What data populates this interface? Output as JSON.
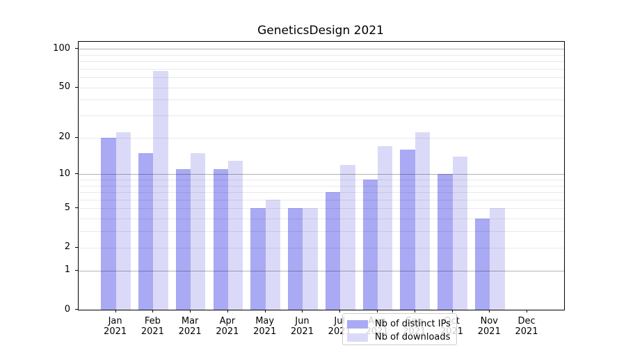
{
  "title": "GeneticsDesign 2021",
  "chart_data": {
    "type": "bar",
    "title": "GeneticsDesign 2021",
    "scale": "log10(value+1), linear in transformed space",
    "categories": [
      "Jan",
      "Feb",
      "Mar",
      "Apr",
      "May",
      "Jun",
      "Jul",
      "Aug",
      "Sep",
      "Oct",
      "Nov",
      "Dec"
    ],
    "year": "2021",
    "series": [
      {
        "name": "Nb of distinct IPs",
        "color": "#a9a9f4",
        "values": [
          20,
          15,
          11,
          11,
          5,
          5,
          7,
          9,
          16,
          10,
          4,
          0
        ]
      },
      {
        "name": "Nb of downloads",
        "color": "#dadaf8",
        "values": [
          22,
          67,
          15,
          13,
          6,
          5,
          12,
          17,
          22,
          14,
          5,
          0
        ]
      }
    ],
    "y_tick_labels": [
      "100",
      "50",
      "20",
      "10",
      "5",
      "2",
      "1",
      "0"
    ],
    "y_tick_values": [
      100,
      50,
      20,
      10,
      5,
      2,
      1,
      0
    ],
    "major_gridlines": [
      1,
      10,
      100
    ],
    "minor_gridlines": [
      2,
      3,
      4,
      5,
      6,
      7,
      8,
      9,
      20,
      30,
      40,
      50,
      60,
      70,
      80,
      90
    ],
    "ylim": [
      0,
      113
    ],
    "grid": "on",
    "legend_position": "bottom-center-inside"
  },
  "colors": {
    "distinct_ips": "#a9a9f4",
    "downloads": "#dadaf8",
    "spine": "#000000",
    "background": "#ffffff"
  }
}
